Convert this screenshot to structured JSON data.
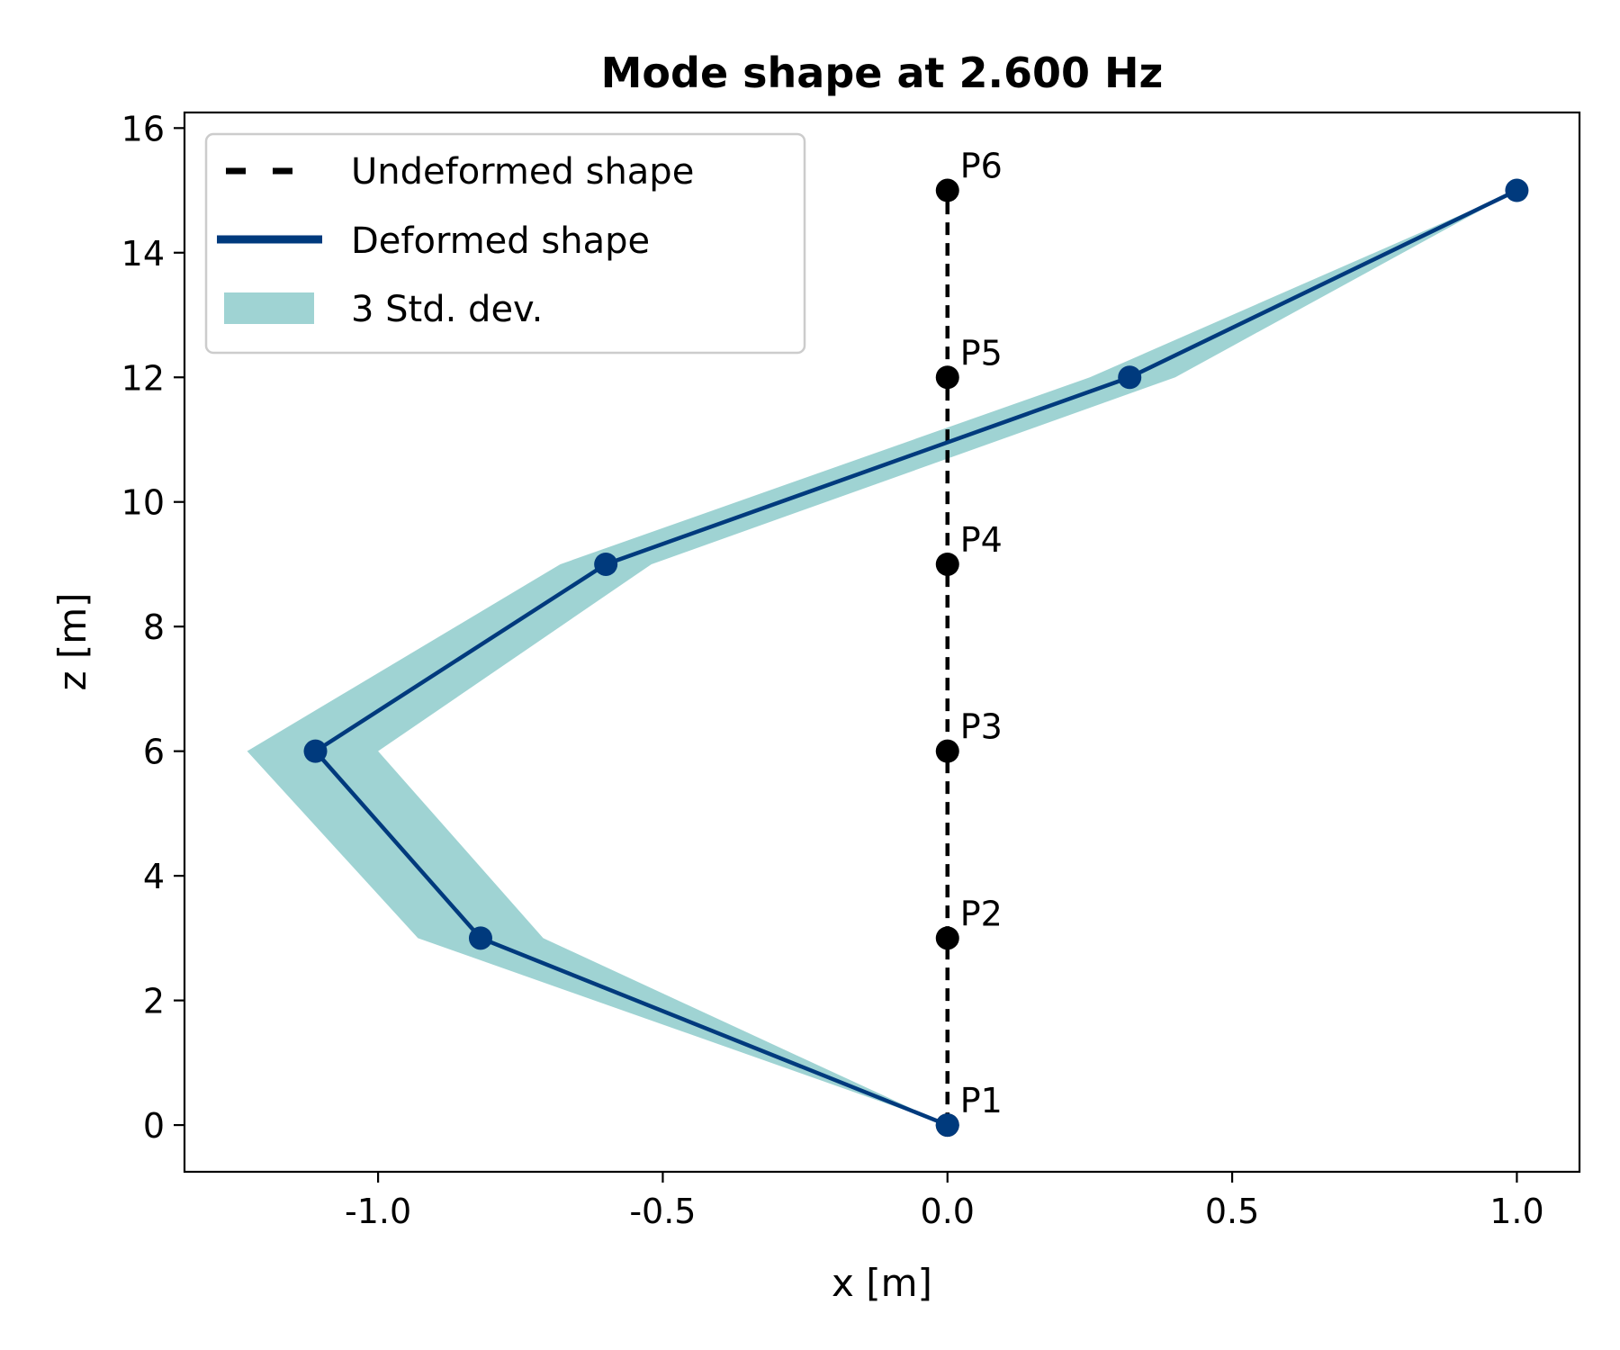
{
  "chart_data": {
    "type": "line",
    "title": "Mode shape at 2.600 Hz",
    "xlabel": "x [m]",
    "ylabel": "z [m]",
    "xlim": [
      -1.34,
      1.11
    ],
    "ylim": [
      -0.75,
      16.25
    ],
    "xticks": [
      -1.0,
      -0.5,
      0.0,
      0.5,
      1.0
    ],
    "xtick_labels": [
      "-1.0",
      "-0.5",
      "0.0",
      "0.5",
      "1.0"
    ],
    "yticks": [
      0,
      2,
      4,
      6,
      8,
      10,
      12,
      14,
      16
    ],
    "ytick_labels": [
      "0",
      "2",
      "4",
      "6",
      "8",
      "10",
      "12",
      "14",
      "16"
    ],
    "grid": false,
    "legend_position": "top-left",
    "legend": {
      "undeformed": "Undeformed shape",
      "deformed": "Deformed shape",
      "band": "3 Std. dev."
    },
    "colors": {
      "undeformed": "#000000",
      "deformed": "#003a7d",
      "band": "#9fd3d3"
    },
    "points": [
      "P1",
      "P2",
      "P3",
      "P4",
      "P5",
      "P6"
    ],
    "undeformed": {
      "x": [
        0,
        0,
        0,
        0,
        0,
        0
      ],
      "z": [
        0,
        3,
        6,
        9,
        12,
        15
      ]
    },
    "deformed": {
      "x": [
        0,
        -0.82,
        -1.11,
        -0.6,
        0.32,
        1.0
      ],
      "z": [
        0,
        3,
        6,
        9,
        12,
        15
      ]
    },
    "band": {
      "z": [
        0,
        3,
        6,
        9,
        12,
        15
      ],
      "x_lower": [
        0,
        -0.93,
        -1.23,
        -0.68,
        0.25,
        1.0
      ],
      "x_upper": [
        0,
        -0.71,
        -1.0,
        -0.52,
        0.4,
        1.0
      ]
    }
  }
}
